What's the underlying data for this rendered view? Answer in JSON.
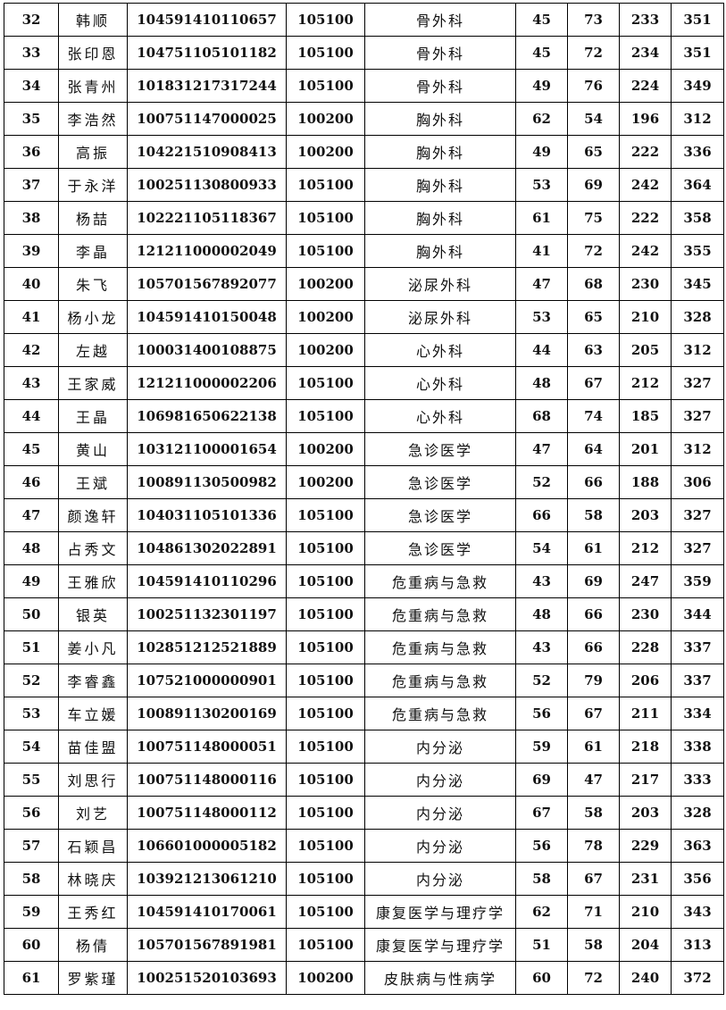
{
  "rows": [
    [
      "32",
      "韩顺",
      "104591410110657",
      "105100",
      "骨外科",
      "45",
      "73",
      "233",
      "351"
    ],
    [
      "33",
      "张印恩",
      "104751105101182",
      "105100",
      "骨外科",
      "45",
      "72",
      "234",
      "351"
    ],
    [
      "34",
      "张青州",
      "101831217317244",
      "105100",
      "骨外科",
      "49",
      "76",
      "224",
      "349"
    ],
    [
      "35",
      "李浩然",
      "100751147000025",
      "100200",
      "胸外科",
      "62",
      "54",
      "196",
      "312"
    ],
    [
      "36",
      "高振",
      "104221510908413",
      "100200",
      "胸外科",
      "49",
      "65",
      "222",
      "336"
    ],
    [
      "37",
      "于永洋",
      "100251130800933",
      "105100",
      "胸外科",
      "53",
      "69",
      "242",
      "364"
    ],
    [
      "38",
      "杨喆",
      "102221105118367",
      "105100",
      "胸外科",
      "61",
      "75",
      "222",
      "358"
    ],
    [
      "39",
      "李晶",
      "121211000002049",
      "105100",
      "胸外科",
      "41",
      "72",
      "242",
      "355"
    ],
    [
      "40",
      "朱飞",
      "105701567892077",
      "100200",
      "泌尿外科",
      "47",
      "68",
      "230",
      "345"
    ],
    [
      "41",
      "杨小龙",
      "104591410150048",
      "100200",
      "泌尿外科",
      "53",
      "65",
      "210",
      "328"
    ],
    [
      "42",
      "左越",
      "100031400108875",
      "100200",
      "心外科",
      "44",
      "63",
      "205",
      "312"
    ],
    [
      "43",
      "王家威",
      "121211000002206",
      "105100",
      "心外科",
      "48",
      "67",
      "212",
      "327"
    ],
    [
      "44",
      "王晶",
      "106981650622138",
      "105100",
      "心外科",
      "68",
      "74",
      "185",
      "327"
    ],
    [
      "45",
      "黄山",
      "103121100001654",
      "100200",
      "急诊医学",
      "47",
      "64",
      "201",
      "312"
    ],
    [
      "46",
      "王斌",
      "100891130500982",
      "100200",
      "急诊医学",
      "52",
      "66",
      "188",
      "306"
    ],
    [
      "47",
      "颜逸轩",
      "104031105101336",
      "105100",
      "急诊医学",
      "66",
      "58",
      "203",
      "327"
    ],
    [
      "48",
      "占秀文",
      "104861302022891",
      "105100",
      "急诊医学",
      "54",
      "61",
      "212",
      "327"
    ],
    [
      "49",
      "王雅欣",
      "104591410110296",
      "105100",
      "危重病与急救",
      "43",
      "69",
      "247",
      "359"
    ],
    [
      "50",
      "银英",
      "100251132301197",
      "105100",
      "危重病与急救",
      "48",
      "66",
      "230",
      "344"
    ],
    [
      "51",
      "姜小凡",
      "102851212521889",
      "105100",
      "危重病与急救",
      "43",
      "66",
      "228",
      "337"
    ],
    [
      "52",
      "李睿鑫",
      "107521000000901",
      "105100",
      "危重病与急救",
      "52",
      "79",
      "206",
      "337"
    ],
    [
      "53",
      "车立媛",
      "100891130200169",
      "105100",
      "危重病与急救",
      "56",
      "67",
      "211",
      "334"
    ],
    [
      "54",
      "苗佳盟",
      "100751148000051",
      "105100",
      "内分泌",
      "59",
      "61",
      "218",
      "338"
    ],
    [
      "55",
      "刘思行",
      "100751148000116",
      "105100",
      "内分泌",
      "69",
      "47",
      "217",
      "333"
    ],
    [
      "56",
      "刘艺",
      "100751148000112",
      "105100",
      "内分泌",
      "67",
      "58",
      "203",
      "328"
    ],
    [
      "57",
      "石颖昌",
      "106601000005182",
      "105100",
      "内分泌",
      "56",
      "78",
      "229",
      "363"
    ],
    [
      "58",
      "林晓庆",
      "103921213061210",
      "105100",
      "内分泌",
      "58",
      "67",
      "231",
      "356"
    ],
    [
      "59",
      "王秀红",
      "104591410170061",
      "105100",
      "康复医学与理疗学",
      "62",
      "71",
      "210",
      "343"
    ],
    [
      "60",
      "杨倩",
      "105701567891981",
      "105100",
      "康复医学与理疗学",
      "51",
      "58",
      "204",
      "313"
    ],
    [
      "61",
      "罗紫瑾",
      "100251520103693",
      "100200",
      "皮肤病与性病学",
      "60",
      "72",
      "240",
      "372"
    ]
  ]
}
